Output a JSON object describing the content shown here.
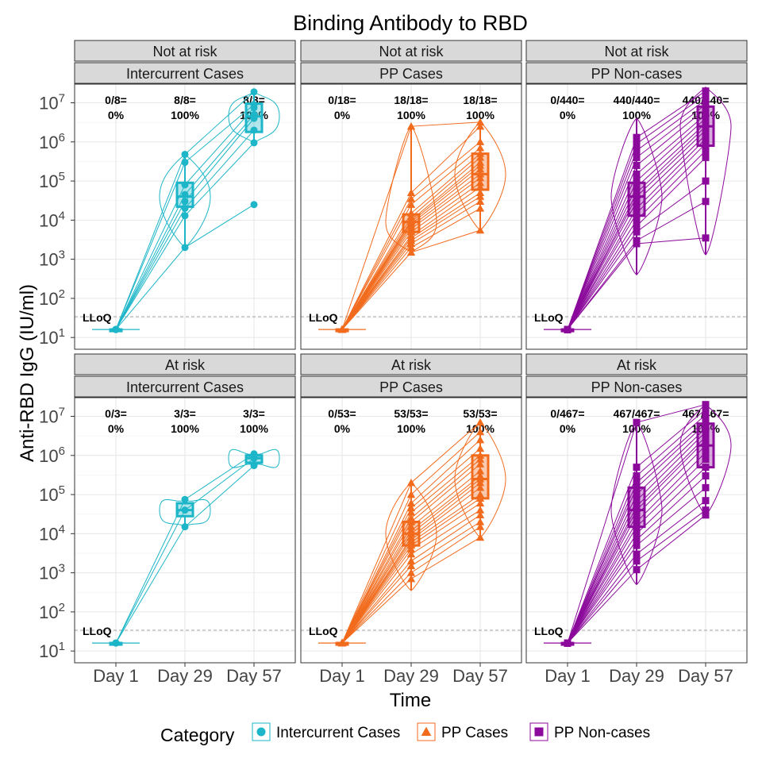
{
  "chart_data": {
    "type": "line",
    "title": "Binding Antibody to RBD",
    "xlabel": "Time",
    "ylabel": "Anti-RBD IgG (IU/ml)",
    "x_categories": [
      "Day 1",
      "Day 29",
      "Day 57"
    ],
    "y_scale": "log10",
    "ylim": [
      5,
      30000000
    ],
    "y_ticks": [
      {
        "value": 10,
        "base": "10",
        "exp": "1"
      },
      {
        "value": 100,
        "base": "10",
        "exp": "2"
      },
      {
        "value": 1000,
        "base": "10",
        "exp": "3"
      },
      {
        "value": 10000,
        "base": "10",
        "exp": "4"
      },
      {
        "value": 100000,
        "base": "10",
        "exp": "5"
      },
      {
        "value": 1000000,
        "base": "10",
        "exp": "6"
      },
      {
        "value": 10000000,
        "base": "10",
        "exp": "7"
      }
    ],
    "lloq": {
      "label": "LLoQ",
      "value": 34
    },
    "grid": true,
    "legend": {
      "title": "Category",
      "position": "bottom",
      "items": [
        {
          "label": "Intercurrent Cases",
          "color": "#1DB6C8",
          "shape": "circle"
        },
        {
          "label": "PP Cases",
          "color": "#F26B1D",
          "shape": "triangle"
        },
        {
          "label": "PP Non-cases",
          "color": "#8B0A9B",
          "shape": "square"
        }
      ]
    },
    "panels": [
      {
        "row_label": "Not at risk",
        "col_label": "Intercurrent Cases",
        "category": 0,
        "annotations": [
          {
            "count": "0/8=",
            "pct": "0%"
          },
          {
            "count": "8/8=",
            "pct": "100%"
          },
          {
            "count": "8/8=",
            "pct": "100%"
          }
        ],
        "box": [
          {
            "q1": 16,
            "med": 16,
            "q3": 16,
            "lo": 16,
            "hi": 16
          },
          {
            "q1": 22000,
            "med": 40000,
            "q3": 90000,
            "lo": 2000,
            "hi": 480000
          },
          {
            "q1": 1800000,
            "med": 4500000,
            "q3": 9500000,
            "lo": 950000,
            "hi": 19000000
          }
        ],
        "subjects": [
          [
            16,
            480000,
            19000000
          ],
          [
            16,
            300000,
            9000000
          ],
          [
            16,
            80000,
            7500000
          ],
          [
            16,
            45000,
            5000000
          ],
          [
            16,
            30000,
            4000000
          ],
          [
            16,
            20000,
            2000000
          ],
          [
            16,
            13000,
            950000
          ],
          [
            16,
            2000,
            25000
          ]
        ]
      },
      {
        "row_label": "Not at risk",
        "col_label": "PP Cases",
        "category": 1,
        "annotations": [
          {
            "count": "0/18=",
            "pct": "0%"
          },
          {
            "count": "18/18=",
            "pct": "100%"
          },
          {
            "count": "18/18=",
            "pct": "100%"
          }
        ],
        "box": [
          {
            "q1": 16,
            "med": 16,
            "q3": 16,
            "lo": 16,
            "hi": 16
          },
          {
            "q1": 5000,
            "med": 9000,
            "q3": 14000,
            "lo": 1500,
            "hi": 2500000
          },
          {
            "q1": 60000,
            "med": 150000,
            "q3": 500000,
            "lo": 5500,
            "hi": 3200000
          }
        ],
        "subjects": [
          [
            16,
            2500000,
            3200000
          ],
          [
            16,
            50000,
            2500000
          ],
          [
            16,
            35000,
            1000000
          ],
          [
            16,
            25000,
            700000
          ],
          [
            16,
            15000,
            500000
          ],
          [
            16,
            12000,
            400000
          ],
          [
            16,
            10000,
            300000
          ],
          [
            16,
            9000,
            250000
          ],
          [
            16,
            8000,
            200000
          ],
          [
            16,
            7000,
            150000
          ],
          [
            16,
            6000,
            120000
          ],
          [
            16,
            5000,
            90000
          ],
          [
            16,
            4000,
            70000
          ],
          [
            16,
            3500,
            50000
          ],
          [
            16,
            3000,
            40000
          ],
          [
            16,
            2500,
            30000
          ],
          [
            16,
            2000,
            20000
          ],
          [
            16,
            1500,
            5500
          ]
        ]
      },
      {
        "row_label": "Not at risk",
        "col_label": "PP Non-cases",
        "category": 2,
        "annotations": [
          {
            "count": "0/440=",
            "pct": "0%"
          },
          {
            "count": "440/440=",
            "pct": "100%"
          },
          {
            "count": "440/440=",
            "pct": "100%"
          }
        ],
        "box": [
          {
            "q1": 16,
            "med": 16,
            "q3": 16,
            "lo": 16,
            "hi": 16
          },
          {
            "q1": 13000,
            "med": 40000,
            "q3": 90000,
            "lo": 400,
            "hi": 4000000
          },
          {
            "q1": 800000,
            "med": 2500000,
            "q3": 8000000,
            "lo": 1300,
            "hi": 25000000
          }
        ],
        "subjects": [
          [
            16,
            1300000,
            20000000
          ],
          [
            16,
            900000,
            16000000
          ],
          [
            16,
            600000,
            12000000
          ],
          [
            16,
            400000,
            9000000
          ],
          [
            16,
            250000,
            7000000
          ],
          [
            16,
            150000,
            5000000
          ],
          [
            16,
            100000,
            4000000
          ],
          [
            16,
            70000,
            3000000
          ],
          [
            16,
            50000,
            2500000
          ],
          [
            16,
            40000,
            2000000
          ],
          [
            16,
            30000,
            1500000
          ],
          [
            16,
            20000,
            1200000
          ],
          [
            16,
            15000,
            900000
          ],
          [
            16,
            10000,
            600000
          ],
          [
            16,
            7000,
            400000
          ],
          [
            16,
            5000,
            100000
          ],
          [
            16,
            3000,
            30000
          ],
          [
            16,
            2500,
            3500
          ]
        ]
      },
      {
        "row_label": "At risk",
        "col_label": "Intercurrent Cases",
        "category": 0,
        "annotations": [
          {
            "count": "0/3=",
            "pct": "0%"
          },
          {
            "count": "3/3=",
            "pct": "100%"
          },
          {
            "count": "3/3=",
            "pct": "100%"
          }
        ],
        "box": [
          {
            "q1": 16,
            "med": 16,
            "q3": 16,
            "lo": 16,
            "hi": 16
          },
          {
            "q1": 28000,
            "med": 40000,
            "q3": 60000,
            "lo": 15000,
            "hi": 75000
          },
          {
            "q1": 650000,
            "med": 850000,
            "q3": 1000000,
            "lo": 550000,
            "hi": 1150000
          }
        ],
        "subjects": [
          [
            16,
            75000,
            1100000
          ],
          [
            16,
            40000,
            850000
          ],
          [
            16,
            15000,
            550000
          ]
        ]
      },
      {
        "row_label": "At risk",
        "col_label": "PP Cases",
        "category": 1,
        "annotations": [
          {
            "count": "0/53=",
            "pct": "0%"
          },
          {
            "count": "53/53=",
            "pct": "100%"
          },
          {
            "count": "53/53=",
            "pct": "100%"
          }
        ],
        "box": [
          {
            "q1": 16,
            "med": 16,
            "q3": 16,
            "lo": 16,
            "hi": 16
          },
          {
            "q1": 5000,
            "med": 10000,
            "q3": 20000,
            "lo": 350,
            "hi": 200000
          },
          {
            "q1": 80000,
            "med": 250000,
            "q3": 1000000,
            "lo": 8000,
            "hi": 7000000
          }
        ],
        "subjects": [
          [
            16,
            200000,
            7000000
          ],
          [
            16,
            100000,
            4000000
          ],
          [
            16,
            60000,
            2500000
          ],
          [
            16,
            45000,
            1500000
          ],
          [
            16,
            35000,
            1000000
          ],
          [
            16,
            25000,
            800000
          ],
          [
            16,
            20000,
            600000
          ],
          [
            16,
            15000,
            400000
          ],
          [
            16,
            12000,
            300000
          ],
          [
            16,
            10000,
            250000
          ],
          [
            16,
            8000,
            200000
          ],
          [
            16,
            7000,
            150000
          ],
          [
            16,
            6000,
            100000
          ],
          [
            16,
            5000,
            80000
          ],
          [
            16,
            4000,
            60000
          ],
          [
            16,
            3000,
            40000
          ],
          [
            16,
            2000,
            30000
          ],
          [
            16,
            1500,
            20000
          ],
          [
            16,
            1000,
            15000
          ],
          [
            16,
            700,
            8000
          ]
        ]
      },
      {
        "row_label": "At risk",
        "col_label": "PP Non-cases",
        "category": 2,
        "annotations": [
          {
            "count": "0/467=",
            "pct": "0%"
          },
          {
            "count": "467/467=",
            "pct": "100%"
          },
          {
            "count": "467/467=",
            "pct": "100%"
          }
        ],
        "box": [
          {
            "q1": 16,
            "med": 16,
            "q3": 16,
            "lo": 16,
            "hi": 16
          },
          {
            "q1": 15000,
            "med": 40000,
            "q3": 150000,
            "lo": 500,
            "hi": 7000000
          },
          {
            "q1": 500000,
            "med": 1800000,
            "q3": 6500000,
            "lo": 30000,
            "hi": 20000000
          }
        ],
        "subjects": [
          [
            16,
            7000000,
            20000000
          ],
          [
            16,
            500000,
            15000000
          ],
          [
            16,
            300000,
            11000000
          ],
          [
            16,
            200000,
            8000000
          ],
          [
            16,
            150000,
            6500000
          ],
          [
            16,
            100000,
            5000000
          ],
          [
            16,
            70000,
            4000000
          ],
          [
            16,
            50000,
            3000000
          ],
          [
            16,
            40000,
            2500000
          ],
          [
            16,
            30000,
            1800000
          ],
          [
            16,
            20000,
            1200000
          ],
          [
            16,
            15000,
            800000
          ],
          [
            16,
            10000,
            500000
          ],
          [
            16,
            7000,
            300000
          ],
          [
            16,
            5000,
            150000
          ],
          [
            16,
            3000,
            70000
          ],
          [
            16,
            2000,
            40000
          ],
          [
            16,
            1200,
            30000
          ]
        ]
      }
    ]
  }
}
